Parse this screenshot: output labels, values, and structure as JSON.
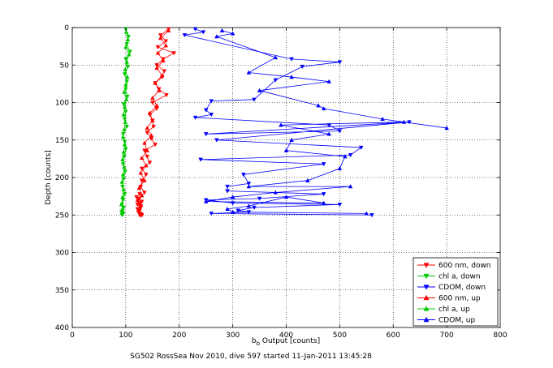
{
  "chart_data": {
    "type": "scatter",
    "title": "",
    "caption": "SG502 RossSea Nov 2010, dive 597 started 11-Jan-2011 13:45:28",
    "xlabel_main": "b",
    "xlabel_sub": "b",
    "xlabel_rest": " Output [counts]",
    "ylabel": "Depth [counts]",
    "xlim": [
      0,
      800
    ],
    "ylim": [
      0,
      400
    ],
    "y_reversed": true,
    "grid": true,
    "legend_position": "bottom-right",
    "xticks": [
      "0",
      "100",
      "200",
      "300",
      "400",
      "500",
      "600",
      "700",
      "800"
    ],
    "yticks": [
      "0",
      "50",
      "100",
      "150",
      "200",
      "250",
      "300",
      "350",
      "400"
    ],
    "series": [
      {
        "name": "600 nm, down",
        "color": "#ff0000",
        "marker": "triangle-down",
        "x": [
          180,
          165,
          175,
          160,
          190,
          170,
          158,
          172,
          168,
          155,
          162,
          176,
          150,
          158,
          145,
          150,
          152,
          140,
          148,
          155,
          135,
          140,
          145,
          130,
          138,
          130,
          128,
          135,
          125,
          130,
          122,
          128,
          126,
          124,
          125,
          130,
          122,
          128,
          125,
          124,
          120,
          126
        ],
        "y": [
          2,
          10,
          18,
          26,
          34,
          42,
          50,
          58,
          66,
          74,
          82,
          90,
          100,
          108,
          116,
          124,
          132,
          140,
          148,
          156,
          164,
          172,
          180,
          188,
          196,
          204,
          212,
          220,
          228,
          232,
          236,
          240,
          244,
          246,
          248,
          250,
          242,
          238,
          234,
          230,
          226,
          222
        ]
      },
      {
        "name": "chl a, down",
        "color": "#00cc00",
        "marker": "triangle-down",
        "x": [
          100,
          105,
          102,
          108,
          100,
          104,
          98,
          102,
          100,
          103,
          96,
          100,
          98,
          102,
          95,
          98,
          100,
          97,
          95,
          99,
          96,
          94,
          98,
          95,
          93,
          96,
          94,
          92,
          95,
          93
        ],
        "y": [
          2,
          12,
          22,
          32,
          42,
          52,
          62,
          72,
          82,
          92,
          102,
          112,
          122,
          132,
          142,
          152,
          162,
          172,
          182,
          192,
          202,
          212,
          222,
          230,
          236,
          240,
          244,
          246,
          248,
          250
        ]
      },
      {
        "name": "CDOM, down",
        "color": "#0000ff",
        "marker": "triangle-down",
        "x": [
          230,
          245,
          210,
          410,
          500,
          430,
          380,
          340,
          260,
          250,
          260,
          230,
          480,
          500,
          250,
          630,
          270,
          540,
          520,
          240,
          470,
          320,
          330,
          290,
          290,
          470,
          350,
          250,
          300,
          500,
          340,
          310,
          330,
          260,
          560
        ],
        "y": [
          2,
          6,
          10,
          42,
          46,
          52,
          70,
          96,
          98,
          110,
          116,
          120,
          130,
          138,
          142,
          126,
          150,
          160,
          170,
          176,
          182,
          196,
          208,
          212,
          218,
          222,
          228,
          230,
          234,
          236,
          240,
          244,
          246,
          248,
          250
        ]
      },
      {
        "name": "600 nm, up",
        "color": "#ff0000",
        "marker": "triangle-up",
        "x": [
          180,
          165,
          175,
          160,
          170,
          158,
          168,
          155,
          162,
          150,
          158,
          145,
          150,
          140,
          148,
          135,
          140,
          130,
          138,
          128,
          135,
          125,
          130,
          122,
          128,
          126,
          124,
          130,
          128
        ],
        "y": [
          4,
          14,
          24,
          34,
          44,
          54,
          64,
          74,
          84,
          94,
          104,
          114,
          124,
          134,
          144,
          154,
          164,
          174,
          184,
          194,
          204,
          214,
          224,
          230,
          236,
          240,
          244,
          248,
          250
        ]
      },
      {
        "name": "chl a, up",
        "color": "#00cc00",
        "marker": "triangle-up",
        "x": [
          101,
          104,
          100,
          106,
          102,
          99,
          103,
          100,
          97,
          101,
          98,
          96,
          99,
          97,
          95,
          98,
          96,
          94,
          97,
          95,
          93,
          96,
          94,
          92,
          95
        ],
        "y": [
          6,
          16,
          26,
          36,
          46,
          56,
          66,
          76,
          86,
          96,
          106,
          116,
          126,
          136,
          146,
          156,
          166,
          176,
          186,
          196,
          206,
          216,
          226,
          236,
          246
        ]
      },
      {
        "name": "CDOM, up",
        "color": "#0000ff",
        "marker": "triangle-up",
        "x": [
          280,
          300,
          270,
          380,
          330,
          410,
          480,
          350,
          460,
          470,
          580,
          700,
          620,
          390,
          480,
          410,
          400,
          510,
          500,
          440,
          330,
          520,
          380,
          300,
          250,
          470,
          400,
          330,
          290,
          300,
          550
        ],
        "y": [
          4,
          8,
          12,
          40,
          60,
          66,
          72,
          84,
          104,
          108,
          122,
          134,
          126,
          130,
          142,
          150,
          164,
          172,
          188,
          204,
          212,
          212,
          220,
          226,
          232,
          234,
          226,
          238,
          242,
          246,
          248
        ]
      }
    ]
  }
}
